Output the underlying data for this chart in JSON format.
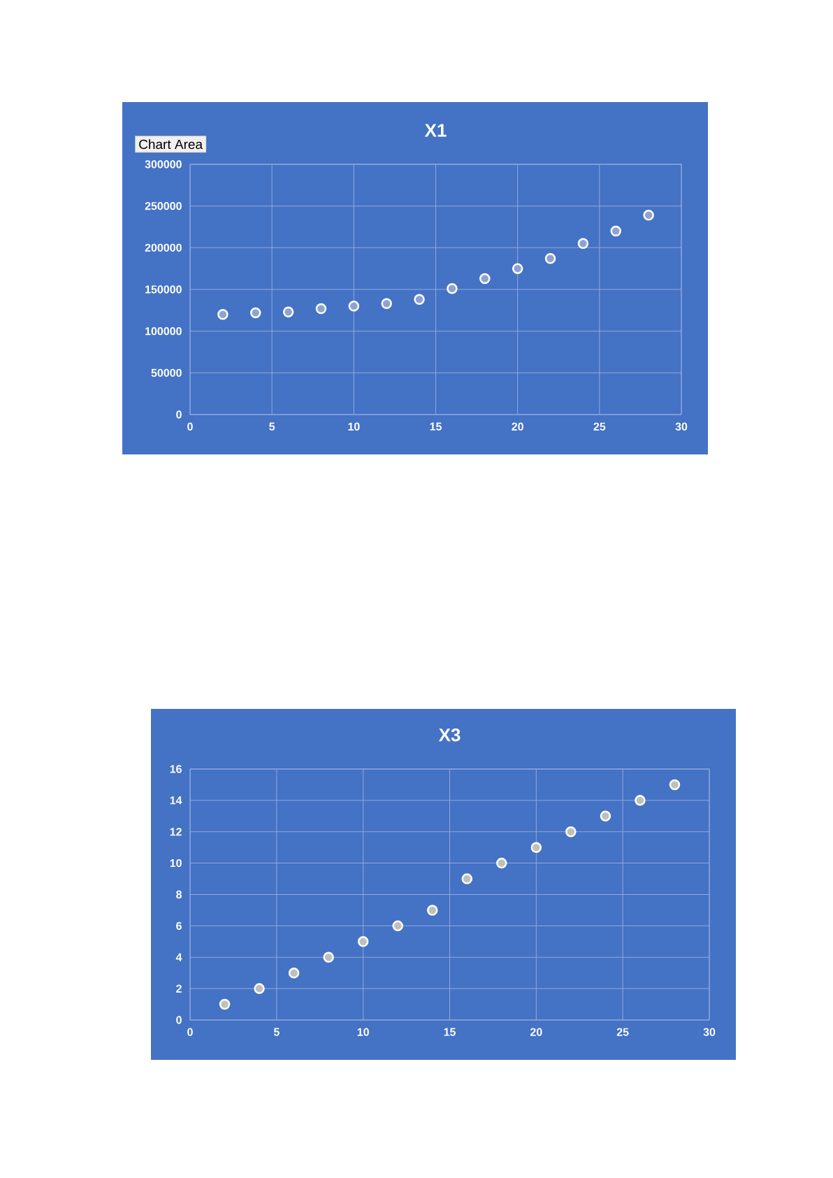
{
  "chart_data": [
    {
      "type": "scatter",
      "title": "X1",
      "x": [
        2,
        4,
        6,
        8,
        10,
        12,
        14,
        16,
        18,
        20,
        22,
        24,
        26,
        28
      ],
      "values": [
        120000,
        122000,
        123000,
        127000,
        130000,
        133000,
        138000,
        151000,
        163000,
        175000,
        187000,
        205000,
        220000,
        239000
      ],
      "color": "#8ea3d4",
      "marker": "circle",
      "grid": true,
      "xlim": [
        0,
        30
      ],
      "xticks": [
        0,
        5,
        10,
        15,
        20,
        25,
        30
      ],
      "ylim": [
        0,
        300000
      ],
      "yticks": [
        0,
        50000,
        100000,
        150000,
        200000,
        250000,
        300000
      ],
      "annotations": [
        "Chart Area"
      ]
    },
    {
      "type": "scatter",
      "title": "X3",
      "x": [
        2,
        4,
        6,
        8,
        10,
        12,
        14,
        16,
        18,
        20,
        22,
        24,
        26,
        28
      ],
      "values": [
        1,
        2,
        3,
        4,
        5,
        6,
        7,
        9,
        10,
        11,
        12,
        13,
        14,
        15
      ],
      "color": "#bfbfbf",
      "marker": "circle",
      "grid": true,
      "xlim": [
        0,
        30
      ],
      "xticks": [
        0,
        5,
        10,
        15,
        20,
        25,
        30
      ],
      "ylim": [
        0,
        16
      ],
      "yticks": [
        0,
        2,
        4,
        6,
        8,
        10,
        12,
        14,
        16
      ]
    }
  ]
}
